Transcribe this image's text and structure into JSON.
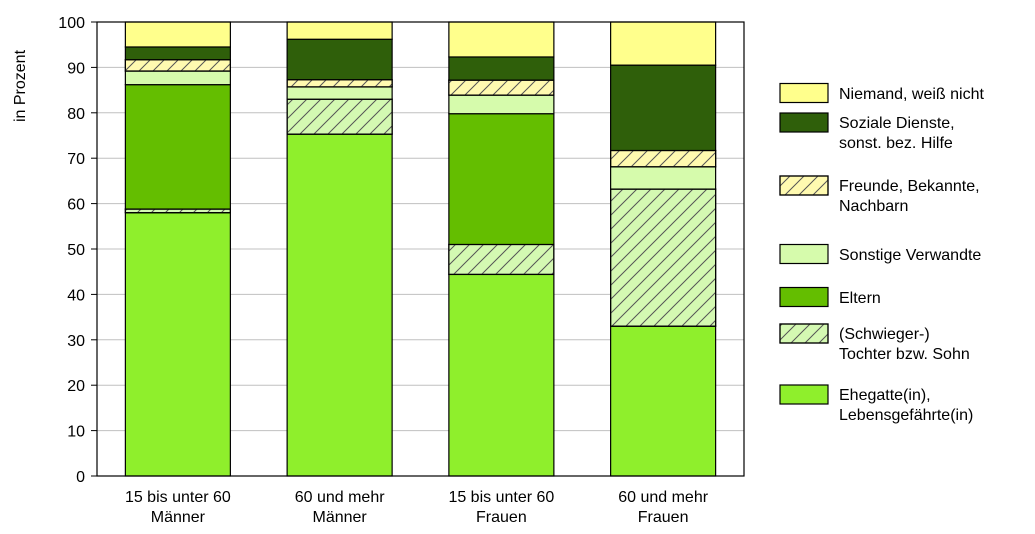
{
  "chart_data": {
    "type": "bar",
    "stacked": true,
    "title": "",
    "xlabel": "",
    "ylabel": "in Prozent",
    "ylim": [
      0,
      100
    ],
    "yticks": [
      "0",
      "10",
      "20",
      "30",
      "40",
      "50",
      "60",
      "70",
      "80",
      "90",
      "100"
    ],
    "grid": true,
    "legend_position": "right",
    "categories": [
      {
        "line1": "15 bis unter 60",
        "line2": "Männer"
      },
      {
        "line1": "60 und mehr",
        "line2": "Männer"
      },
      {
        "line1": "15 bis unter 60",
        "line2": "Frauen"
      },
      {
        "line1": "60 und mehr",
        "line2": "Frauen"
      }
    ],
    "series": [
      {
        "name": "Ehegatte(in), Lebensgefährte(in)",
        "legend_lines": [
          "Ehegatte(in),",
          "Lebensgefährte(in)"
        ],
        "values": [
          58,
          75.3,
          44.4,
          33
        ],
        "color": "#8fef2c",
        "hatch": false
      },
      {
        "name": "(Schwieger-) Tochter bzw. Sohn",
        "legend_lines": [
          "(Schwieger-)",
          "Tochter bzw. Sohn"
        ],
        "values": [
          0.8,
          7.7,
          6.6,
          30.2
        ],
        "color": "#d4f9b2",
        "hatch": true
      },
      {
        "name": "Eltern",
        "legend_lines": [
          "Eltern"
        ],
        "values": [
          27.4,
          0,
          28.8,
          0
        ],
        "color": "#64be00",
        "hatch": false
      },
      {
        "name": "Sonstige Verwandte",
        "legend_lines": [
          "Sonstige Verwandte"
        ],
        "values": [
          3,
          2.7,
          4.1,
          4.9
        ],
        "color": "#d6fbac",
        "hatch": false
      },
      {
        "name": "Freunde, Bekannte, Nachbarn",
        "legend_lines": [
          "Freunde, Bekannte,",
          "Nachbarn"
        ],
        "values": [
          2.5,
          1.6,
          3.3,
          3.6
        ],
        "color": "#fffab0",
        "hatch": true
      },
      {
        "name": "Soziale Dienste, sonst. bez. Hilfe",
        "legend_lines": [
          "Soziale Dienste,",
          "sonst. bez. Hilfe"
        ],
        "values": [
          2.8,
          8.9,
          5.1,
          18.8
        ],
        "color": "#2f5f0a",
        "hatch": false
      },
      {
        "name": "Niemand, weiß nicht",
        "legend_lines": [
          "Niemand, weiß nicht"
        ],
        "values": [
          5.5,
          3.8,
          7.7,
          9.5
        ],
        "color": "#ffff8c",
        "hatch": false
      }
    ],
    "colors": {
      "frame": "#000000",
      "grid": "#c0c0c0",
      "hatch_line": "#555555"
    }
  }
}
